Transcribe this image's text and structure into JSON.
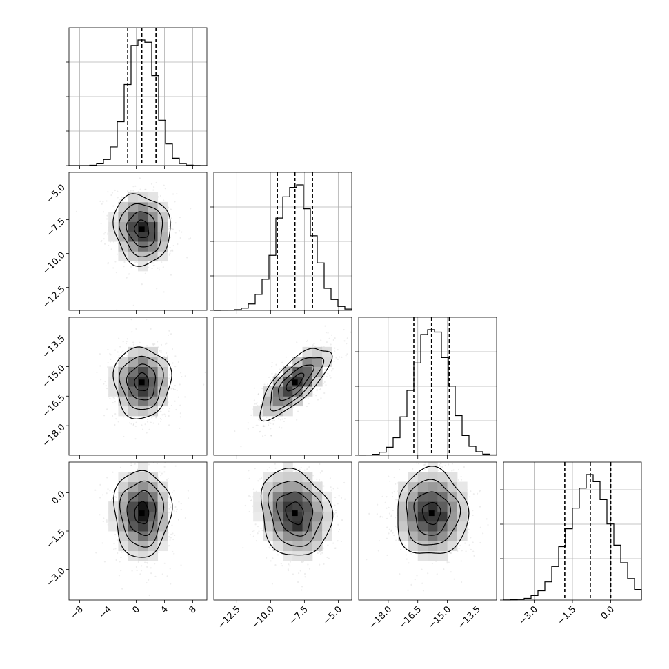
{
  "chart_data": {
    "type": "corner",
    "description_params": 4,
    "params": [
      {
        "mean": 0.8,
        "sigma": 2.0,
        "range": [
          -9.5,
          10.0
        ],
        "quantiles": [
          -1.2,
          0.8,
          2.8
        ],
        "tick_values": [
          -8,
          -4,
          0,
          4,
          8
        ],
        "tick_labels": [
          "−8",
          "−4",
          "0",
          "4",
          "8"
        ],
        "label": ""
      },
      {
        "mean": -8.2,
        "sigma": 1.3,
        "range": [
          -14.2,
          -4.0
        ],
        "quantiles": [
          -9.5,
          -8.2,
          -6.9
        ],
        "tick_values": [
          -12.5,
          -10.0,
          -7.5,
          -5.0
        ],
        "tick_labels": [
          "−12.5",
          "−10.0",
          "−7.5",
          "−5.0"
        ],
        "label": ""
      },
      {
        "mean": -15.8,
        "sigma": 0.9,
        "range": [
          -19.5,
          -12.5
        ],
        "quantiles": [
          -16.7,
          -15.8,
          -14.9
        ],
        "tick_values": [
          -18.0,
          -16.5,
          -15.0,
          -13.5
        ],
        "tick_labels": [
          "−18.0",
          "−16.5",
          "−15.0",
          "−13.5"
        ],
        "label": ""
      },
      {
        "mean": -0.8,
        "sigma": 0.85,
        "range": [
          -4.2,
          1.2
        ],
        "quantiles": [
          -1.8,
          -0.8,
          0.0
        ],
        "tick_values": [
          -3.0,
          -1.5,
          0.0
        ],
        "tick_labels": [
          "−3.0",
          "−1.5",
          "0.0"
        ],
        "label": ""
      }
    ],
    "correlations": [
      [
        1.0,
        -0.1,
        0.0,
        0.0
      ],
      [
        -0.1,
        1.0,
        0.75,
        -0.15
      ],
      [
        0.0,
        0.75,
        1.0,
        0.0
      ],
      [
        0.0,
        -0.15,
        0.0,
        1.0
      ]
    ],
    "histogram_bins": 20,
    "contour_levels_sigma": [
      0.5,
      1.0,
      1.5,
      2.0
    ],
    "grid": true,
    "quantile_lines": "dashed"
  }
}
